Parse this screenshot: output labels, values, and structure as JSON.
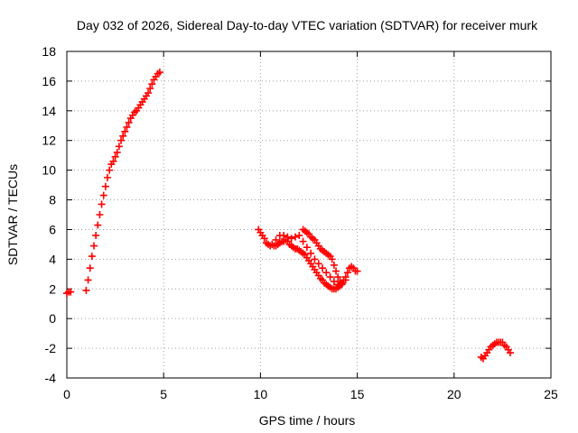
{
  "chart_data": {
    "type": "scatter",
    "title": "Day 032 of 2026, Sidereal Day-to-day VTEC variation (SDTVAR) for receiver murk",
    "xlabel": "GPS time / hours",
    "ylabel": "SDTVAR / TECUs",
    "xlim": [
      0,
      25
    ],
    "ylim": [
      -4,
      18
    ],
    "xticks": [
      "0",
      "5",
      "10",
      "15",
      "20",
      "25"
    ],
    "yticks": [
      "-4",
      "-2",
      "0",
      "2",
      "4",
      "6",
      "8",
      "10",
      "12",
      "14",
      "16",
      "18"
    ],
    "grid": true,
    "marker": "plus",
    "color": "#ff0000",
    "series": [
      {
        "name": "SDTVAR",
        "segments": [
          {
            "x": [
              0.0,
              0.1,
              0.2
            ],
            "y": [
              1.7,
              1.8,
              1.8
            ]
          },
          {
            "x": [
              1.0,
              1.1,
              1.2,
              1.3,
              1.4,
              1.5,
              1.6,
              1.7,
              1.8,
              1.9,
              2.0,
              2.1,
              2.2,
              2.3,
              2.4,
              2.5,
              2.6,
              2.7,
              2.8,
              2.9,
              3.0,
              3.1,
              3.2,
              3.3,
              3.4,
              3.5,
              3.6,
              3.7,
              3.8,
              3.9,
              4.0,
              4.1,
              4.2,
              4.3,
              4.4,
              4.5,
              4.6,
              4.7,
              4.8
            ],
            "y": [
              1.9,
              2.6,
              3.4,
              4.2,
              4.9,
              5.6,
              6.3,
              7.0,
              7.7,
              8.3,
              8.9,
              9.5,
              10.0,
              10.4,
              10.6,
              10.9,
              11.2,
              11.6,
              12.0,
              12.3,
              12.6,
              12.9,
              13.2,
              13.5,
              13.7,
              13.9,
              14.0,
              14.2,
              14.4,
              14.6,
              14.8,
              15.0,
              15.2,
              15.5,
              15.8,
              16.1,
              16.3,
              16.5,
              16.6
            ]
          },
          {
            "x": [
              9.9,
              10.0,
              10.1,
              10.2,
              10.3,
              10.4,
              10.5,
              10.6,
              10.7,
              10.8,
              10.9,
              11.0,
              11.1,
              11.2,
              11.3,
              11.4,
              11.5,
              11.6,
              11.7,
              11.8,
              11.9,
              12.0,
              12.1,
              12.2,
              12.3,
              12.4,
              12.5,
              12.6,
              12.7,
              12.8,
              12.9,
              13.0,
              13.1,
              13.2,
              13.3,
              13.4,
              13.5,
              13.6,
              13.7,
              13.8,
              13.9,
              14.0,
              14.1,
              14.2,
              14.3,
              14.4,
              14.5,
              14.6,
              14.7,
              14.8,
              14.9,
              15.0
            ],
            "y": [
              6.0,
              5.8,
              5.6,
              5.4,
              5.1,
              5.0,
              4.9,
              5.0,
              4.9,
              4.9,
              5.0,
              5.1,
              5.2,
              5.2,
              5.3,
              5.2,
              5.0,
              4.9,
              4.8,
              4.7,
              4.7,
              4.6,
              4.5,
              4.4,
              4.3,
              4.1,
              3.9,
              3.7,
              3.5,
              3.3,
              3.1,
              2.9,
              2.7,
              2.6,
              2.4,
              2.3,
              2.2,
              2.1,
              2.0,
              2.0,
              2.0,
              2.1,
              2.2,
              2.4,
              2.6,
              2.8,
              3.1,
              3.4,
              3.5,
              3.4,
              3.2,
              3.2
            ]
          },
          {
            "x": [
              10.6,
              10.8,
              11.0,
              11.2,
              11.4,
              11.6,
              11.8,
              12.0,
              12.2,
              12.4,
              12.6,
              12.8,
              13.0,
              13.2,
              13.4,
              13.6,
              13.8,
              14.0,
              14.2,
              14.4
            ],
            "y": [
              5.0,
              5.3,
              5.6,
              5.6,
              5.5,
              5.4,
              5.5,
              5.6,
              5.2,
              4.8,
              4.4,
              4.0,
              3.7,
              3.4,
              3.1,
              2.8,
              2.5,
              2.3,
              2.3,
              2.6
            ]
          },
          {
            "x": [
              12.2,
              12.3,
              12.4,
              12.5,
              12.6,
              12.7,
              12.8,
              12.9,
              13.0,
              13.1,
              13.2,
              13.3,
              13.4,
              13.5,
              13.6,
              13.7,
              13.8,
              13.9,
              14.0,
              14.1,
              14.2
            ],
            "y": [
              6.0,
              5.9,
              5.8,
              5.7,
              5.5,
              5.4,
              5.3,
              5.1,
              4.9,
              4.7,
              4.6,
              4.5,
              4.4,
              4.3,
              4.2,
              4.0,
              3.6,
              3.2,
              2.8,
              2.5,
              2.3
            ]
          },
          {
            "x": [
              21.4,
              21.5,
              21.6,
              21.7,
              21.8,
              21.9,
              22.0,
              22.1,
              22.2,
              22.3,
              22.4,
              22.5,
              22.6,
              22.7,
              22.8,
              22.9
            ],
            "y": [
              -2.6,
              -2.7,
              -2.5,
              -2.3,
              -2.1,
              -1.9,
              -1.8,
              -1.7,
              -1.6,
              -1.6,
              -1.6,
              -1.6,
              -1.8,
              -1.9,
              -2.1,
              -2.3
            ]
          }
        ]
      }
    ]
  }
}
